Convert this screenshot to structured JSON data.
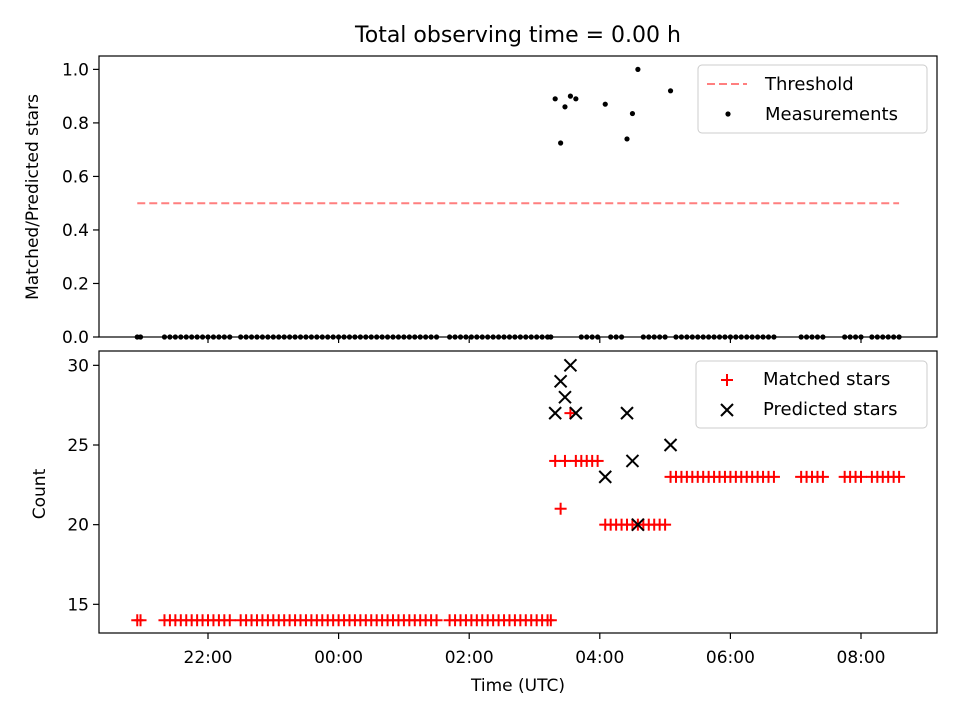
{
  "title": "Total observing time = 0.00 h",
  "xlabel": "Time (UTC)",
  "x_ticks": [
    "22:00",
    "00:00",
    "02:00",
    "04:00",
    "06:00",
    "08:00"
  ],
  "colors": {
    "threshold": "#ff7f7f",
    "measurement": "#000000",
    "matched": "#ff0000",
    "predicted": "#000000"
  },
  "chart_data": [
    {
      "type": "scatter",
      "ylabel": "Matched/Predicted stars",
      "ylim": [
        0,
        1.05
      ],
      "y_ticks": [
        "0.0",
        "0.2",
        "0.4",
        "0.6",
        "0.8",
        "1.0"
      ],
      "legend": {
        "placement": "upper right",
        "entries": [
          "Threshold",
          "Measurements"
        ]
      },
      "threshold": {
        "name": "Threshold",
        "y": 0.5,
        "x_range": [
          "20:55",
          "08:35"
        ],
        "style": "dashed"
      },
      "series": [
        {
          "name": "Measurements",
          "points": [
            [
              "20:55",
              0
            ],
            [
              "20:58",
              0
            ],
            [
              "21:20",
              0
            ],
            [
              "21:25",
              0
            ],
            [
              "21:30",
              0
            ],
            [
              "21:35",
              0
            ],
            [
              "21:40",
              0
            ],
            [
              "21:45",
              0
            ],
            [
              "21:50",
              0
            ],
            [
              "21:55",
              0
            ],
            [
              "22:00",
              0
            ],
            [
              "22:05",
              0
            ],
            [
              "22:10",
              0
            ],
            [
              "22:15",
              0
            ],
            [
              "22:20",
              0
            ],
            [
              "22:30",
              0
            ],
            [
              "22:35",
              0
            ],
            [
              "22:40",
              0
            ],
            [
              "22:45",
              0
            ],
            [
              "22:50",
              0
            ],
            [
              "22:55",
              0
            ],
            [
              "23:00",
              0
            ],
            [
              "23:05",
              0
            ],
            [
              "23:10",
              0
            ],
            [
              "23:15",
              0
            ],
            [
              "23:20",
              0
            ],
            [
              "23:25",
              0
            ],
            [
              "23:30",
              0
            ],
            [
              "23:35",
              0
            ],
            [
              "23:40",
              0
            ],
            [
              "23:45",
              0
            ],
            [
              "23:50",
              0
            ],
            [
              "23:55",
              0
            ],
            [
              "00:00",
              0
            ],
            [
              "00:05",
              0
            ],
            [
              "00:10",
              0
            ],
            [
              "00:15",
              0
            ],
            [
              "00:20",
              0
            ],
            [
              "00:25",
              0
            ],
            [
              "00:30",
              0
            ],
            [
              "00:35",
              0
            ],
            [
              "00:40",
              0
            ],
            [
              "00:45",
              0
            ],
            [
              "00:50",
              0
            ],
            [
              "00:55",
              0
            ],
            [
              "01:00",
              0
            ],
            [
              "01:05",
              0
            ],
            [
              "01:10",
              0
            ],
            [
              "01:15",
              0
            ],
            [
              "01:20",
              0
            ],
            [
              "01:25",
              0
            ],
            [
              "01:30",
              0
            ],
            [
              "01:42",
              0
            ],
            [
              "01:47",
              0
            ],
            [
              "01:52",
              0
            ],
            [
              "01:57",
              0
            ],
            [
              "02:02",
              0
            ],
            [
              "02:07",
              0
            ],
            [
              "02:12",
              0
            ],
            [
              "02:17",
              0
            ],
            [
              "02:22",
              0
            ],
            [
              "02:27",
              0
            ],
            [
              "02:32",
              0
            ],
            [
              "02:37",
              0
            ],
            [
              "02:42",
              0
            ],
            [
              "02:47",
              0
            ],
            [
              "02:52",
              0
            ],
            [
              "02:57",
              0
            ],
            [
              "03:02",
              0
            ],
            [
              "03:07",
              0
            ],
            [
              "03:12",
              0
            ],
            [
              "03:15",
              0
            ],
            [
              "03:19",
              0.89
            ],
            [
              "03:24",
              0.725
            ],
            [
              "03:28",
              0.86
            ],
            [
              "03:33",
              0.9
            ],
            [
              "03:38",
              0.89
            ],
            [
              "03:43",
              0
            ],
            [
              "03:48",
              0
            ],
            [
              "03:53",
              0
            ],
            [
              "03:58",
              0
            ],
            [
              "04:05",
              0.87
            ],
            [
              "04:10",
              0
            ],
            [
              "04:15",
              0
            ],
            [
              "04:20",
              0
            ],
            [
              "04:25",
              0.74
            ],
            [
              "04:30",
              0.835
            ],
            [
              "04:35",
              1.0
            ],
            [
              "04:40",
              0
            ],
            [
              "04:45",
              0
            ],
            [
              "04:50",
              0
            ],
            [
              "04:55",
              0
            ],
            [
              "05:00",
              0
            ],
            [
              "05:05",
              0.92
            ],
            [
              "05:10",
              0
            ],
            [
              "05:15",
              0
            ],
            [
              "05:20",
              0
            ],
            [
              "05:25",
              0
            ],
            [
              "05:30",
              0
            ],
            [
              "05:35",
              0
            ],
            [
              "05:40",
              0
            ],
            [
              "05:45",
              0
            ],
            [
              "05:50",
              0
            ],
            [
              "05:55",
              0
            ],
            [
              "06:00",
              0
            ],
            [
              "06:05",
              0
            ],
            [
              "06:10",
              0
            ],
            [
              "06:15",
              0
            ],
            [
              "06:20",
              0
            ],
            [
              "06:25",
              0
            ],
            [
              "06:30",
              0
            ],
            [
              "06:35",
              0
            ],
            [
              "06:40",
              0
            ],
            [
              "07:05",
              0
            ],
            [
              "07:10",
              0
            ],
            [
              "07:15",
              0
            ],
            [
              "07:20",
              0
            ],
            [
              "07:25",
              0
            ],
            [
              "07:45",
              0
            ],
            [
              "07:50",
              0
            ],
            [
              "07:55",
              0
            ],
            [
              "08:00",
              0
            ],
            [
              "08:10",
              0
            ],
            [
              "08:15",
              0
            ],
            [
              "08:20",
              0
            ],
            [
              "08:25",
              0
            ],
            [
              "08:30",
              0
            ],
            [
              "08:35",
              0
            ]
          ]
        }
      ]
    },
    {
      "type": "scatter",
      "ylabel": "Count",
      "ylim": [
        13.2,
        30.9
      ],
      "y_ticks": [
        "15",
        "20",
        "25",
        "30"
      ],
      "legend": {
        "placement": "upper right",
        "entries": [
          "Matched stars",
          "Predicted stars"
        ]
      },
      "series": [
        {
          "name": "Matched stars",
          "points": [
            [
              "20:55",
              14
            ],
            [
              "20:58",
              14
            ],
            [
              "21:20",
              14
            ],
            [
              "21:25",
              14
            ],
            [
              "21:30",
              14
            ],
            [
              "21:35",
              14
            ],
            [
              "21:40",
              14
            ],
            [
              "21:45",
              14
            ],
            [
              "21:50",
              14
            ],
            [
              "21:55",
              14
            ],
            [
              "22:00",
              14
            ],
            [
              "22:05",
              14
            ],
            [
              "22:10",
              14
            ],
            [
              "22:15",
              14
            ],
            [
              "22:20",
              14
            ],
            [
              "22:30",
              14
            ],
            [
              "22:35",
              14
            ],
            [
              "22:40",
              14
            ],
            [
              "22:45",
              14
            ],
            [
              "22:50",
              14
            ],
            [
              "22:55",
              14
            ],
            [
              "23:00",
              14
            ],
            [
              "23:05",
              14
            ],
            [
              "23:10",
              14
            ],
            [
              "23:15",
              14
            ],
            [
              "23:20",
              14
            ],
            [
              "23:25",
              14
            ],
            [
              "23:30",
              14
            ],
            [
              "23:35",
              14
            ],
            [
              "23:40",
              14
            ],
            [
              "23:45",
              14
            ],
            [
              "23:50",
              14
            ],
            [
              "23:55",
              14
            ],
            [
              "00:00",
              14
            ],
            [
              "00:05",
              14
            ],
            [
              "00:10",
              14
            ],
            [
              "00:15",
              14
            ],
            [
              "00:20",
              14
            ],
            [
              "00:25",
              14
            ],
            [
              "00:30",
              14
            ],
            [
              "00:35",
              14
            ],
            [
              "00:40",
              14
            ],
            [
              "00:45",
              14
            ],
            [
              "00:50",
              14
            ],
            [
              "00:55",
              14
            ],
            [
              "01:00",
              14
            ],
            [
              "01:05",
              14
            ],
            [
              "01:10",
              14
            ],
            [
              "01:15",
              14
            ],
            [
              "01:20",
              14
            ],
            [
              "01:25",
              14
            ],
            [
              "01:30",
              14
            ],
            [
              "01:42",
              14
            ],
            [
              "01:47",
              14
            ],
            [
              "01:52",
              14
            ],
            [
              "01:57",
              14
            ],
            [
              "02:02",
              14
            ],
            [
              "02:07",
              14
            ],
            [
              "02:12",
              14
            ],
            [
              "02:17",
              14
            ],
            [
              "02:22",
              14
            ],
            [
              "02:27",
              14
            ],
            [
              "02:32",
              14
            ],
            [
              "02:37",
              14
            ],
            [
              "02:42",
              14
            ],
            [
              "02:47",
              14
            ],
            [
              "02:52",
              14
            ],
            [
              "02:57",
              14
            ],
            [
              "03:02",
              14
            ],
            [
              "03:07",
              14
            ],
            [
              "03:12",
              14
            ],
            [
              "03:15",
              14
            ],
            [
              "03:19",
              24
            ],
            [
              "03:24",
              21
            ],
            [
              "03:28",
              24
            ],
            [
              "03:33",
              27
            ],
            [
              "03:38",
              24
            ],
            [
              "03:43",
              24
            ],
            [
              "03:48",
              24
            ],
            [
              "03:53",
              24
            ],
            [
              "03:58",
              24
            ],
            [
              "04:05",
              20
            ],
            [
              "04:10",
              20
            ],
            [
              "04:15",
              20
            ],
            [
              "04:20",
              20
            ],
            [
              "04:25",
              20
            ],
            [
              "04:30",
              20
            ],
            [
              "04:35",
              20
            ],
            [
              "04:40",
              20
            ],
            [
              "04:45",
              20
            ],
            [
              "04:50",
              20
            ],
            [
              "04:55",
              20
            ],
            [
              "05:00",
              20
            ],
            [
              "05:05",
              23
            ],
            [
              "05:10",
              23
            ],
            [
              "05:15",
              23
            ],
            [
              "05:20",
              23
            ],
            [
              "05:25",
              23
            ],
            [
              "05:30",
              23
            ],
            [
              "05:35",
              23
            ],
            [
              "05:40",
              23
            ],
            [
              "05:45",
              23
            ],
            [
              "05:50",
              23
            ],
            [
              "05:55",
              23
            ],
            [
              "06:00",
              23
            ],
            [
              "06:05",
              23
            ],
            [
              "06:10",
              23
            ],
            [
              "06:15",
              23
            ],
            [
              "06:20",
              23
            ],
            [
              "06:25",
              23
            ],
            [
              "06:30",
              23
            ],
            [
              "06:35",
              23
            ],
            [
              "06:40",
              23
            ],
            [
              "07:05",
              23
            ],
            [
              "07:10",
              23
            ],
            [
              "07:15",
              23
            ],
            [
              "07:20",
              23
            ],
            [
              "07:25",
              23
            ],
            [
              "07:45",
              23
            ],
            [
              "07:50",
              23
            ],
            [
              "07:55",
              23
            ],
            [
              "08:00",
              23
            ],
            [
              "08:10",
              23
            ],
            [
              "08:15",
              23
            ],
            [
              "08:20",
              23
            ],
            [
              "08:25",
              23
            ],
            [
              "08:30",
              23
            ],
            [
              "08:35",
              23
            ]
          ]
        },
        {
          "name": "Predicted stars",
          "points": [
            [
              "03:19",
              27
            ],
            [
              "03:24",
              29
            ],
            [
              "03:28",
              28
            ],
            [
              "03:33",
              30
            ],
            [
              "03:38",
              27
            ],
            [
              "04:05",
              23
            ],
            [
              "04:25",
              27
            ],
            [
              "04:30",
              24
            ],
            [
              "04:35",
              20
            ],
            [
              "05:05",
              25
            ]
          ]
        }
      ]
    }
  ]
}
